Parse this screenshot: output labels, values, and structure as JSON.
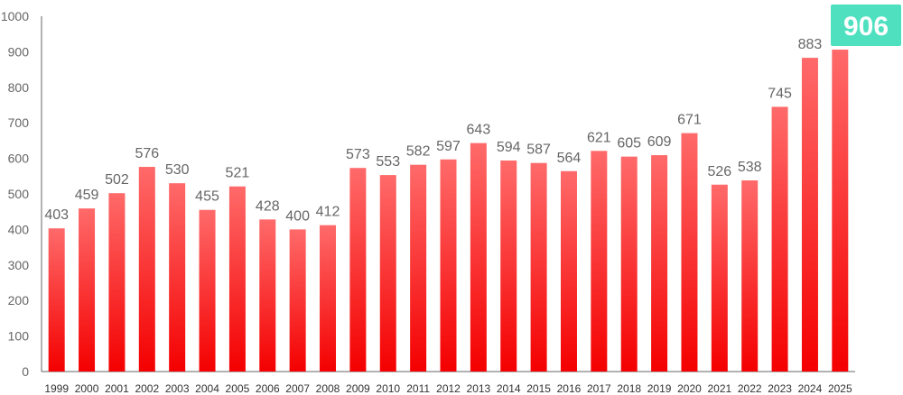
{
  "chart_data": {
    "type": "bar",
    "categories": [
      "1999",
      "2000",
      "2001",
      "2002",
      "2003",
      "2004",
      "2005",
      "2006",
      "2007",
      "2008",
      "2009",
      "2010",
      "2011",
      "2012",
      "2013",
      "2014",
      "2015",
      "2016",
      "2017",
      "2018",
      "2019",
      "2020",
      "2021",
      "2022",
      "2023",
      "2024",
      "2025"
    ],
    "values": [
      403,
      459,
      502,
      576,
      530,
      455,
      521,
      428,
      400,
      412,
      573,
      553,
      582,
      597,
      643,
      594,
      587,
      564,
      621,
      605,
      609,
      671,
      526,
      538,
      745,
      883,
      906
    ],
    "yticks": [
      0,
      100,
      200,
      300,
      400,
      500,
      600,
      700,
      800,
      900,
      1000
    ],
    "ylim": [
      0,
      1000
    ],
    "grid": false,
    "highlight": {
      "category": "2025",
      "label": "906",
      "badge_color": "#4EE0BF"
    },
    "colors": {
      "bar_top": "#FF6A6A",
      "bar_bottom": "#F40000",
      "axis": "#666666",
      "tick_text": "#666666",
      "x_text": "#333333"
    }
  }
}
